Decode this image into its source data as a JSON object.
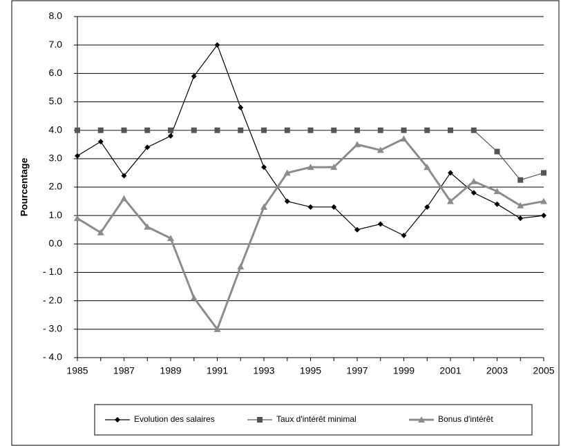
{
  "chart_data": {
    "type": "line",
    "y_label": "Pourcentage",
    "x": [
      1985,
      1986,
      1987,
      1988,
      1989,
      1990,
      1991,
      1992,
      1993,
      1994,
      1995,
      1996,
      1997,
      1998,
      1999,
      2000,
      2001,
      2002,
      2003,
      2004,
      2005
    ],
    "xlim": [
      1985,
      2005
    ],
    "xticks": [
      1985,
      1987,
      1989,
      1991,
      1993,
      1995,
      1997,
      1999,
      2001,
      2003,
      2005
    ],
    "ylim": [
      -4,
      8
    ],
    "yticks": [
      {
        "value": 8,
        "label": "8.0"
      },
      {
        "value": 7,
        "label": "7.0"
      },
      {
        "value": 6,
        "label": "6.0"
      },
      {
        "value": 5,
        "label": "5.0"
      },
      {
        "value": 4,
        "label": "4.0"
      },
      {
        "value": 3,
        "label": "3.0"
      },
      {
        "value": 2,
        "label": "2.0"
      },
      {
        "value": 1,
        "label": "1.0"
      },
      {
        "value": 0,
        "label": "0.0"
      },
      {
        "value": -1,
        "label": "- 1.0"
      },
      {
        "value": -2,
        "label": "- 2.0"
      },
      {
        "value": -3,
        "label": "- 3.0"
      },
      {
        "value": -4,
        "label": "- 4.0"
      }
    ],
    "grid": true,
    "legend": "bottom",
    "series": [
      {
        "name": "Evolution des salaires",
        "color": "#000000",
        "marker": "diamond",
        "values": [
          3.1,
          3.6,
          2.4,
          3.4,
          3.8,
          5.9,
          7.0,
          4.8,
          2.7,
          1.5,
          1.3,
          1.3,
          0.5,
          0.7,
          0.3,
          1.3,
          2.5,
          1.8,
          1.4,
          0.9,
          1.0
        ]
      },
      {
        "name": "Taux d'intérêt minimal",
        "color": "#555555",
        "marker": "square",
        "values": [
          4.0,
          4.0,
          4.0,
          4.0,
          4.0,
          4.0,
          4.0,
          4.0,
          4.0,
          4.0,
          4.0,
          4.0,
          4.0,
          4.0,
          4.0,
          4.0,
          4.0,
          4.0,
          3.25,
          2.25,
          2.5
        ]
      },
      {
        "name": "Bonus d'intérêt",
        "color": "#8c8c8c",
        "marker": "triangle",
        "values": [
          0.9,
          0.4,
          1.6,
          0.6,
          0.2,
          -1.9,
          -3.0,
          -0.8,
          1.3,
          2.5,
          2.7,
          2.7,
          3.5,
          3.3,
          3.7,
          2.7,
          1.5,
          2.2,
          1.85,
          1.35,
          1.5
        ]
      }
    ]
  }
}
